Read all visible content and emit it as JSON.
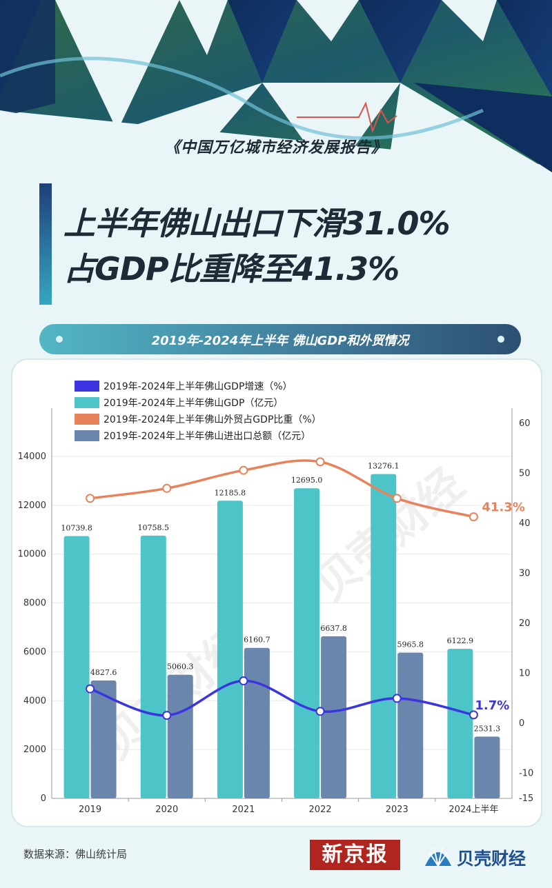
{
  "report": {
    "title": "《中国万亿城市经济发展报告》"
  },
  "headline": {
    "line1": "上半年佛山出口下滑31.0%",
    "line2": "占GDP比重降至41.3%"
  },
  "chart_banner": "2019年-2024年上半年 佛山GDP和外贸情况",
  "watermark": "贝壳财经",
  "footer": {
    "source": "数据来源：佛山统计局",
    "logo_xjb": "新京报",
    "logo_bkcj": "贝壳财经"
  },
  "colors": {
    "gdp_growth": "#3a35e0",
    "gdp": "#4cc4c8",
    "trade_share": "#e8825a",
    "trade_total": "#6b86ad"
  },
  "chart_data": {
    "type": "bar",
    "categories": [
      "2019",
      "2020",
      "2021",
      "2022",
      "2023",
      "2024上半年"
    ],
    "series": [
      {
        "name": "2019年-2024年上半年佛山GDP增速（%）",
        "type": "line",
        "axis": "right",
        "values": [
          6.9,
          1.6,
          8.5,
          2.4,
          5.0,
          1.7
        ]
      },
      {
        "name": "2019年-2024年上半年佛山GDP（亿元）",
        "type": "bar",
        "axis": "left",
        "values": [
          10739.8,
          10758.5,
          12185.8,
          12695.0,
          13276.1,
          6122.9
        ]
      },
      {
        "name": "2019年-2024年上半年佛山外贸占GDP比重（%）",
        "type": "line",
        "axis": "right",
        "values": [
          45.0,
          47.0,
          50.6,
          52.3,
          45.0,
          41.3
        ]
      },
      {
        "name": "2019年-2024年上半年佛山进出口总额（亿元）",
        "type": "bar",
        "axis": "left",
        "values": [
          4827.6,
          5060.3,
          6160.7,
          6637.8,
          5965.8,
          2531.3
        ]
      }
    ],
    "left_axis": {
      "ylim": [
        0,
        14000
      ],
      "ticks": [
        "0",
        "2000",
        "4000",
        "6000",
        "8000",
        "10000",
        "12000",
        "14000"
      ]
    },
    "right_axis": {
      "ylim": [
        -15,
        60
      ],
      "ticks": [
        "-15",
        "-10",
        "0",
        "10",
        "20",
        "30",
        "40",
        "50",
        "60"
      ]
    },
    "bar_labels": {
      "gdp": [
        "10739.8",
        "10758.5",
        "12185.8",
        "12695.0",
        "13276.1",
        "6122.9"
      ],
      "trade_total": [
        "4827.6",
        "5060.3",
        "6160.7",
        "6637.8",
        "5965.8",
        "2531.3"
      ]
    },
    "annotations": {
      "trade_share_last": "41.3%",
      "gdp_growth_last": "1.7%"
    },
    "grid": true,
    "legend": "top-left"
  }
}
